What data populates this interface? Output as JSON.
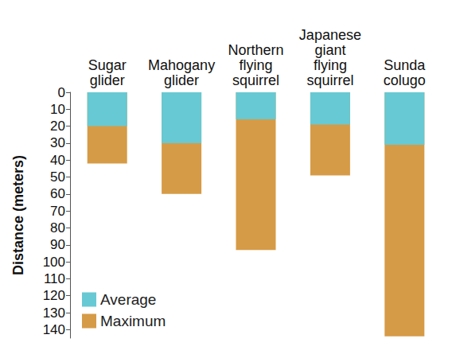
{
  "chart_data": {
    "type": "bar",
    "categories": [
      "Sugar\nglider",
      "Mahogany\nglider",
      "Northern\nflying\nsquirrel",
      "Japanese\ngiant\nflying\nsquirrel",
      "Sunda\ncolugo"
    ],
    "series": [
      {
        "name": "Average",
        "color": "#67c9d3",
        "values": [
          20,
          30,
          16,
          19,
          31
        ]
      },
      {
        "name": "Maximum",
        "color": "#d69b46",
        "values": [
          42,
          60,
          93,
          49,
          144
        ]
      }
    ],
    "y_label": "Distance (meters)",
    "ylim": [
      0,
      145
    ],
    "yticks": [
      0,
      10,
      20,
      30,
      40,
      50,
      60,
      70,
      80,
      90,
      100,
      110,
      120,
      130,
      140
    ],
    "stacked": false,
    "legend": "bottom-left",
    "grid": false
  }
}
